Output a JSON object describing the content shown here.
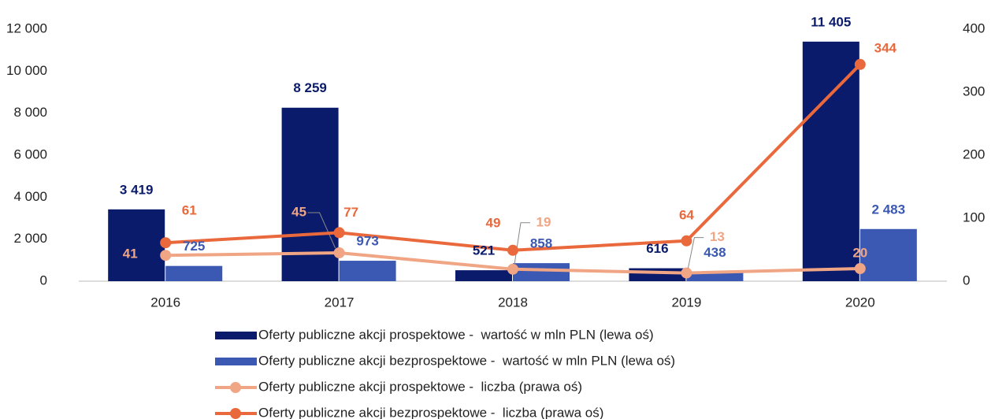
{
  "chart_data": {
    "type": "bar",
    "categories": [
      "2016",
      "2017",
      "2018",
      "2019",
      "2020"
    ],
    "series": [
      {
        "name": "Oferty publiczne akcji prospektowe -  wartość w mln PLN (lewa oś)",
        "type": "bar",
        "color": "#0b1b6b",
        "values": [
          3419,
          8259,
          521,
          616,
          11405
        ],
        "value_labels": [
          "3 419",
          "8 259",
          "521",
          "616",
          "11 405"
        ]
      },
      {
        "name": "Oferty publiczne akcji bezprospektowe -  wartość w mln PLN (lewa oś)",
        "type": "bar",
        "color": "#3b58b2",
        "values": [
          725,
          973,
          858,
          438,
          2483
        ],
        "value_labels": [
          "725",
          "973",
          "858",
          "438",
          "2 483"
        ]
      },
      {
        "name": "Oferty publiczne akcji prospektowe -  liczba (prawa oś)",
        "type": "line",
        "axis": "y2",
        "color": "#f0a584",
        "values": [
          41,
          45,
          19,
          13,
          20
        ]
      },
      {
        "name": "Oferty publiczne akcji bezprospektowe -  liczba (prawa oś)",
        "type": "line",
        "axis": "y2",
        "color": "#e9693c",
        "values": [
          61,
          77,
          49,
          64,
          344
        ]
      }
    ],
    "ylim": [
      0,
      12000
    ],
    "yticks": [
      0,
      {
        "value": 2000,
        "label": "2 000"
      },
      {
        "value": 4000,
        "label": "4 000"
      },
      {
        "value": 6000,
        "label": "6 000"
      },
      {
        "value": 8000,
        "label": "8 000"
      },
      {
        "value": 10000,
        "label": "10 000"
      },
      {
        "value": 12000,
        "label": "12 000"
      }
    ],
    "y2lim": [
      0,
      400
    ],
    "y2ticks": [
      0,
      100,
      200,
      300,
      400
    ],
    "grid": false,
    "legend": "bottom"
  }
}
